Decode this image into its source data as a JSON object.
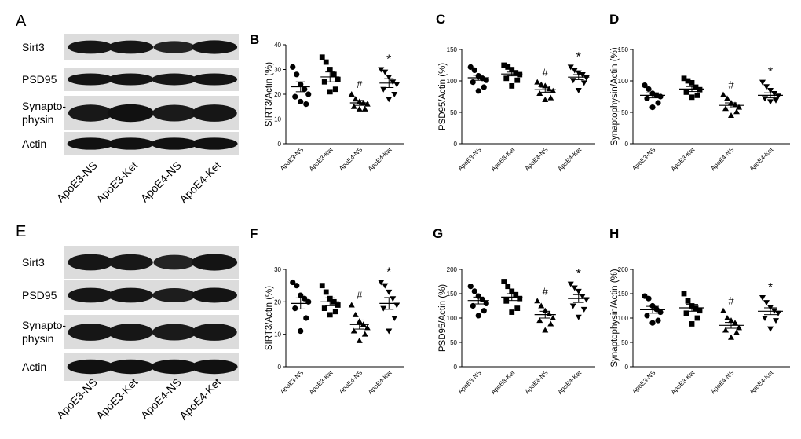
{
  "blots": [
    {
      "letter": "A",
      "rows": [
        {
          "label": "Sirt3",
          "intensity": [
            0.85,
            0.85,
            0.55,
            0.9
          ]
        },
        {
          "label": "PSD95",
          "intensity": [
            0.9,
            0.9,
            0.85,
            0.9
          ]
        },
        {
          "label": "Synapto-\nphysin",
          "intensity": [
            0.8,
            0.95,
            0.75,
            0.85
          ]
        },
        {
          "label": "Actin",
          "intensity": [
            0.95,
            0.95,
            0.95,
            0.95
          ]
        }
      ],
      "lanes": [
        "ApoE3-NS",
        "ApoE3-Ket",
        "ApoE4-NS",
        "ApoE4-Ket"
      ]
    },
    {
      "letter": "E",
      "rows": [
        {
          "label": "Sirt3",
          "intensity": [
            0.85,
            0.8,
            0.55,
            0.9
          ]
        },
        {
          "label": "PSD95",
          "intensity": [
            0.85,
            0.85,
            0.7,
            0.88
          ]
        },
        {
          "label": "Synapto-\nphysin",
          "intensity": [
            0.85,
            0.85,
            0.75,
            0.85
          ]
        },
        {
          "label": "Actin",
          "intensity": [
            0.95,
            0.95,
            0.95,
            0.95
          ]
        }
      ],
      "lanes": [
        "ApoE3-NS",
        "ApoE3-Ket",
        "ApoE4-NS",
        "ApoE4-Ket"
      ]
    }
  ],
  "chart_data": [
    {
      "letter": "B",
      "type": "scatter",
      "ylabel": "SIRT3/Actin (%)",
      "ylim": [
        0,
        40
      ],
      "yticks": [
        0,
        10,
        20,
        30,
        40
      ],
      "categories": [
        "ApoE3-NS",
        "ApoE3-Ket",
        "ApoE4-NS",
        "ApoE4-Ket"
      ],
      "markers": [
        "circle",
        "square",
        "triangle-up",
        "triangle-down"
      ],
      "points": [
        [
          31,
          28,
          24,
          22,
          20,
          19,
          16,
          17
        ],
        [
          35,
          33,
          30,
          28,
          26,
          25,
          22,
          21
        ],
        [
          20,
          18,
          17,
          16.5,
          16,
          15,
          14,
          14
        ],
        [
          30,
          29,
          27,
          25,
          24,
          22,
          20,
          18
        ]
      ],
      "means": [
        23,
        27,
        16.5,
        24.5
      ],
      "sems": [
        2,
        2,
        1,
        1.8
      ],
      "annotations": [
        "",
        "",
        "#",
        "*"
      ]
    },
    {
      "letter": "C",
      "type": "scatter",
      "ylabel": "PSD95/Actin (%)",
      "ylim": [
        0,
        150
      ],
      "yticks": [
        0,
        50,
        100,
        150
      ],
      "categories": [
        "ApoE3-NS",
        "ApoE3-Ket",
        "ApoE4-NS",
        "ApoE4-Ket"
      ],
      "markers": [
        "circle",
        "square",
        "triangle-up",
        "triangle-down"
      ],
      "points": [
        [
          122,
          117,
          108,
          104,
          101,
          98,
          90,
          84
        ],
        [
          125,
          122,
          118,
          113,
          110,
          104,
          101,
          92
        ],
        [
          98,
          94,
          92,
          87,
          84,
          80,
          73,
          70
        ],
        [
          122,
          117,
          113,
          110,
          105,
          101,
          97,
          85
        ]
      ],
      "means": [
        105,
        111,
        86,
        106
      ],
      "sems": [
        4,
        3,
        4,
        4
      ],
      "annotations": [
        "",
        "",
        "#",
        "*"
      ]
    },
    {
      "letter": "D",
      "type": "scatter",
      "ylabel": "Synaptophysin/Actin (%)",
      "ylim": [
        0,
        150
      ],
      "yticks": [
        0,
        50,
        100,
        150
      ],
      "categories": [
        "ApoE3-NS",
        "ApoE3-Ket",
        "ApoE4-NS",
        "ApoE4-Ket"
      ],
      "markers": [
        "circle",
        "square",
        "triangle-up",
        "triangle-down"
      ],
      "points": [
        [
          93,
          87,
          80,
          77,
          75,
          72,
          65,
          58
        ],
        [
          104,
          100,
          97,
          90,
          86,
          82,
          77,
          74
        ],
        [
          78,
          72,
          65,
          62,
          58,
          56,
          51,
          45
        ],
        [
          98,
          91,
          85,
          80,
          76,
          72,
          69,
          67
        ]
      ],
      "means": [
        77,
        87,
        61,
        77
      ],
      "sems": [
        4,
        4,
        4,
        4
      ],
      "annotations": [
        "",
        "",
        "#",
        "*"
      ]
    },
    {
      "letter": "F",
      "type": "scatter",
      "ylabel": "SIRT3/Actin (%)",
      "ylim": [
        0,
        30
      ],
      "yticks": [
        0,
        10,
        20,
        30
      ],
      "categories": [
        "ApoE3-NS",
        "ApoE3-Ket",
        "ApoE4-NS",
        "ApoE4-Ket"
      ],
      "markers": [
        "circle",
        "square",
        "triangle-up",
        "triangle-down"
      ],
      "points": [
        [
          26,
          25,
          22,
          21,
          20,
          18,
          15,
          11
        ],
        [
          25,
          23,
          21,
          20,
          19,
          18,
          17,
          16
        ],
        [
          19,
          16,
          14,
          13,
          12,
          11,
          10,
          8
        ],
        [
          26,
          25,
          23,
          21,
          19,
          18,
          15,
          11
        ]
      ],
      "means": [
        19.5,
        20,
        13,
        19.5
      ],
      "sems": [
        1.7,
        1.2,
        1.4,
        1.8
      ],
      "annotations": [
        "",
        "",
        "#",
        "*"
      ]
    },
    {
      "letter": "G",
      "type": "scatter",
      "ylabel": "PSD95/Actin (%)",
      "ylim": [
        0,
        200
      ],
      "yticks": [
        0,
        50,
        100,
        150,
        200
      ],
      "categories": [
        "ApoE3-NS",
        "ApoE3-Ket",
        "ApoE4-NS",
        "ApoE4-Ket"
      ],
      "markers": [
        "circle",
        "square",
        "triangle-up",
        "triangle-down"
      ],
      "points": [
        [
          165,
          155,
          145,
          138,
          130,
          125,
          115,
          105
        ],
        [
          175,
          165,
          155,
          148,
          140,
          135,
          120,
          112
        ],
        [
          135,
          125,
          115,
          108,
          100,
          95,
          88,
          75
        ],
        [
          170,
          162,
          155,
          145,
          138,
          125,
          118,
          102
        ]
      ],
      "means": [
        136,
        143,
        107,
        140
      ],
      "sems": [
        7,
        7,
        7,
        8
      ],
      "annotations": [
        "",
        "",
        "#",
        "*"
      ]
    },
    {
      "letter": "H",
      "type": "scatter",
      "ylabel": "Synaptophysin/Actin (%)",
      "ylim": [
        0,
        200
      ],
      "yticks": [
        0,
        50,
        100,
        150,
        200
      ],
      "categories": [
        "ApoE3-NS",
        "ApoE3-Ket",
        "ApoE4-NS",
        "ApoE4-Ket"
      ],
      "markers": [
        "circle",
        "square",
        "triangle-up",
        "triangle-down"
      ],
      "points": [
        [
          145,
          140,
          125,
          118,
          112,
          105,
          95,
          90
        ],
        [
          150,
          135,
          125,
          120,
          115,
          110,
          100,
          88
        ],
        [
          115,
          100,
          95,
          90,
          80,
          75,
          70,
          60
        ],
        [
          142,
          132,
          122,
          115,
          110,
          100,
          95,
          78
        ]
      ],
      "means": [
        117,
        121,
        85,
        114
      ],
      "sems": [
        7,
        7,
        6,
        7
      ],
      "annotations": [
        "",
        "",
        "#",
        "*"
      ]
    }
  ]
}
